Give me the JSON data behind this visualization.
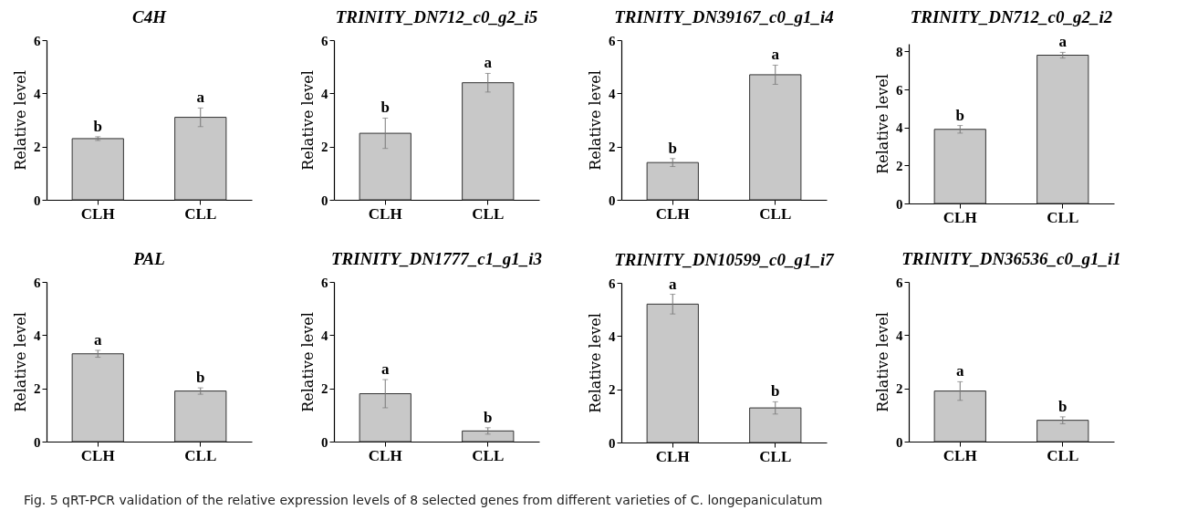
{
  "chart_data": [
    {
      "type": "bar",
      "title": "C4H",
      "ylabel": "Relative level",
      "categories": [
        "CLH",
        "CLL"
      ],
      "values": [
        2.3,
        3.1
      ],
      "errors": [
        0.07,
        0.35
      ],
      "color": "#c8c8c8",
      "ylim": [
        0,
        6
      ],
      "yticks": [
        0,
        2,
        4,
        6
      ],
      "grid": false,
      "annotations": [
        {
          "text": "b",
          "x": "CLH",
          "y": 2.37
        },
        {
          "text": "a",
          "x": "CLL",
          "y": 3.45
        }
      ]
    },
    {
      "type": "bar",
      "title": "TRINITY_DN712_c0_g2_i5",
      "ylabel": "Relative level",
      "categories": [
        "CLH",
        "CLL"
      ],
      "values": [
        2.5,
        4.4
      ],
      "errors": [
        0.57,
        0.35
      ],
      "color": "#c8c8c8",
      "ylim": [
        0,
        6
      ],
      "yticks": [
        0,
        2,
        4,
        6
      ],
      "grid": false,
      "annotations": [
        {
          "text": "b",
          "x": "CLH",
          "y": 3.07
        },
        {
          "text": "a",
          "x": "CLL",
          "y": 4.75
        }
      ]
    },
    {
      "type": "bar",
      "title": "TRINITY_DN39167_c0_g1_i4",
      "ylabel": "Relative level",
      "categories": [
        "CLH",
        "CLL"
      ],
      "values": [
        1.4,
        4.7
      ],
      "errors": [
        0.15,
        0.36
      ],
      "color": "#c8c8c8",
      "ylim": [
        0,
        6
      ],
      "yticks": [
        0,
        2,
        4,
        6
      ],
      "grid": false,
      "annotations": [
        {
          "text": "b",
          "x": "CLH",
          "y": 1.55
        },
        {
          "text": "a",
          "x": "CLL",
          "y": 5.06
        }
      ]
    },
    {
      "type": "bar",
      "title": "TRINITY_DN712_c0_g2_i2",
      "ylabel": "Relative level",
      "categories": [
        "CLH",
        "CLL"
      ],
      "values": [
        3.9,
        7.8
      ],
      "errors": [
        0.2,
        0.15
      ],
      "color": "#c8c8c8",
      "ylim": [
        0,
        8.4
      ],
      "yticks": [
        0,
        2,
        4,
        6,
        8
      ],
      "grid": false,
      "annotations": [
        {
          "text": "b",
          "x": "CLH",
          "y": 4.1
        },
        {
          "text": "a",
          "x": "CLL",
          "y": 7.95
        }
      ]
    },
    {
      "type": "bar",
      "title": "PAL",
      "ylabel": "Relative level",
      "categories": [
        "CLH",
        "CLL"
      ],
      "values": [
        3.3,
        1.9
      ],
      "errors": [
        0.13,
        0.12
      ],
      "color": "#c8c8c8",
      "ylim": [
        0,
        6
      ],
      "yticks": [
        0,
        2,
        4,
        6
      ],
      "grid": false,
      "annotations": [
        {
          "text": "a",
          "x": "CLH",
          "y": 3.43
        },
        {
          "text": "b",
          "x": "CLL",
          "y": 2.02
        }
      ]
    },
    {
      "type": "bar",
      "title": "TRINITY_DN1777_c1_g1_i3",
      "ylabel": "Relative level",
      "categories": [
        "CLH",
        "CLL"
      ],
      "values": [
        1.8,
        0.4
      ],
      "errors": [
        0.53,
        0.12
      ],
      "color": "#c8c8c8",
      "ylim": [
        0,
        6
      ],
      "yticks": [
        0,
        2,
        4,
        6
      ],
      "grid": false,
      "annotations": [
        {
          "text": "a",
          "x": "CLH",
          "y": 2.33
        },
        {
          "text": "b",
          "x": "CLL",
          "y": 0.52
        }
      ]
    },
    {
      "type": "bar",
      "title": "TRINITY_DN10599_c0_g1_i7",
      "ylabel": "Relative level",
      "categories": [
        "CLH",
        "CLL"
      ],
      "values": [
        5.2,
        1.3
      ],
      "errors": [
        0.37,
        0.23
      ],
      "color": "#c8c8c8",
      "ylim": [
        0,
        6
      ],
      "yticks": [
        0,
        2,
        4,
        6
      ],
      "grid": false,
      "annotations": [
        {
          "text": "a",
          "x": "CLH",
          "y": 5.57
        },
        {
          "text": "b",
          "x": "CLL",
          "y": 1.53
        }
      ]
    },
    {
      "type": "bar",
      "title": "TRINITY_DN36536_c0_g1_i1",
      "ylabel": "Relative level",
      "categories": [
        "CLH",
        "CLL"
      ],
      "values": [
        1.9,
        0.8
      ],
      "errors": [
        0.35,
        0.13
      ],
      "color": "#c8c8c8",
      "ylim": [
        0,
        6
      ],
      "yticks": [
        0,
        2,
        4,
        6
      ],
      "grid": false,
      "annotations": [
        {
          "text": "a",
          "x": "CLH",
          "y": 2.25
        },
        {
          "text": "b",
          "x": "CLL",
          "y": 0.93
        },
        "Fig. 5 qRT-PCR validation of the relative expression levels of 8 selected genes from different varieties of C. longepaniculatum"
      ]
    }
  ]
}
